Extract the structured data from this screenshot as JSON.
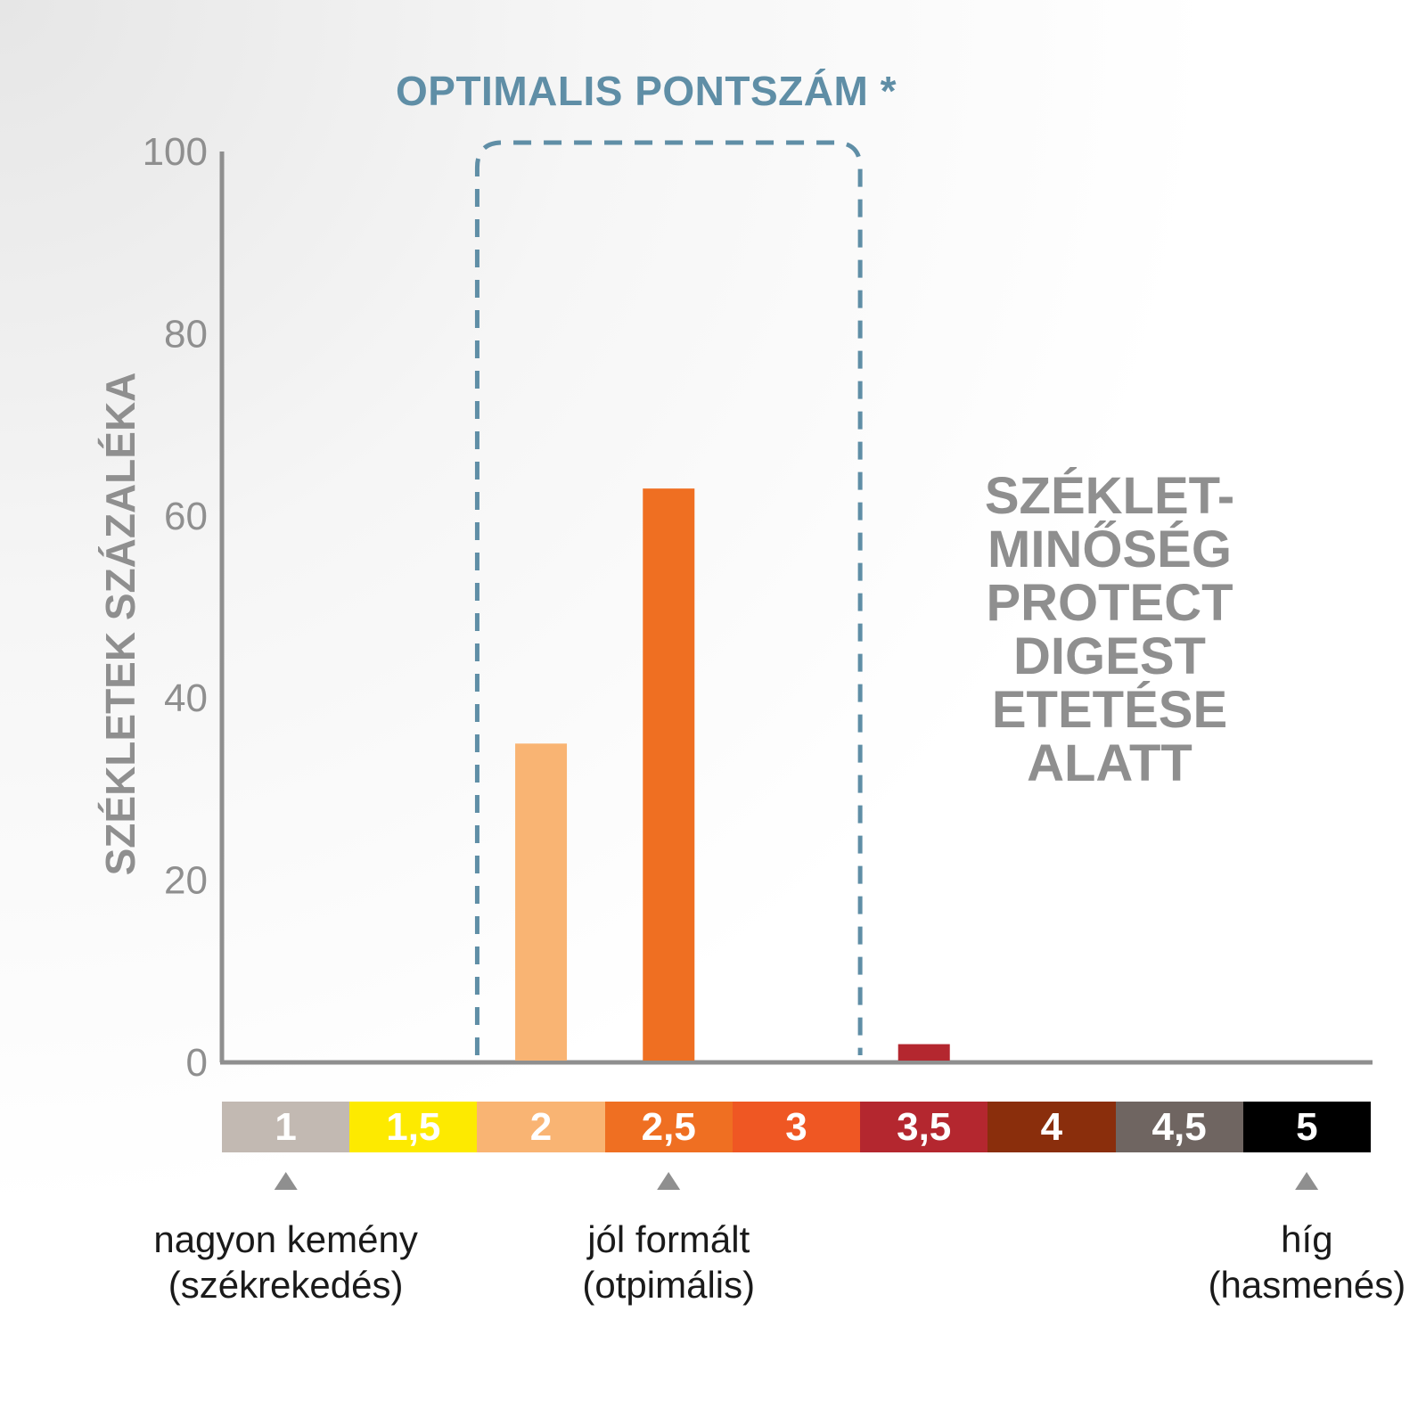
{
  "chart_data": {
    "type": "bar",
    "title": "OPTIMALIS PONTSZÁM *",
    "ylabel": "SZÉKLETEK SZÁZALÉKA",
    "xlabel": "",
    "ylim": [
      0,
      100
    ],
    "yticks": [
      "0",
      "20",
      "40",
      "60",
      "80",
      "100"
    ],
    "categories": [
      "1",
      "1,5",
      "2",
      "2,5",
      "3",
      "3,5",
      "4",
      "4,5",
      "5"
    ],
    "values": [
      0,
      0,
      35,
      63,
      0,
      2,
      0,
      0,
      0
    ],
    "bar_colors": [
      "#c2b9b2",
      "#fdea00",
      "#f9b473",
      "#ef6f22",
      "#ef5723",
      "#b4272f",
      "#8a2e0c",
      "#6f6561",
      "#000000"
    ],
    "optimal_range": [
      "2",
      "2,5",
      "3"
    ],
    "optimal_box_color": "#5f8ea6",
    "annotation": "SZÉKLET-\nMINŐSÉG\nPROTECT\nDIGEST\nETETÉSE\nALATT",
    "markers": [
      {
        "category": "1",
        "label": "nagyon kemény\n(székrekedés)"
      },
      {
        "category": "2,5",
        "label": "jól formált\n(otpimális)"
      },
      {
        "category": "5",
        "label": "híg\n(hasmenés)"
      }
    ],
    "grid": false,
    "axis_color": "#8f8f8f"
  }
}
